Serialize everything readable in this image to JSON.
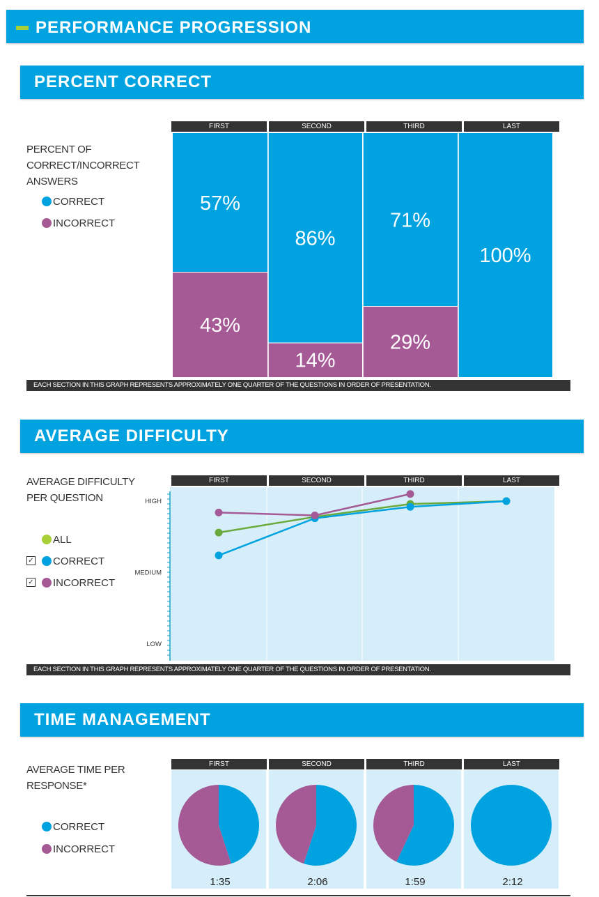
{
  "header": {
    "title": "PERFORMANCE PROGRESSION"
  },
  "colors": {
    "correct": "#00a3e0",
    "incorrect": "#a55a96",
    "all": "#a8cf38",
    "all_line": "#6aaa3c",
    "header_bar": "#333333",
    "panel": "#d5eef9"
  },
  "sections": {
    "percent": {
      "title": "PERCENT CORRECT",
      "legend_title_1": "PERCENT OF",
      "legend_title_2": "CORRECT/INCORRECT",
      "legend_title_3": "ANSWERS",
      "legend_correct": "CORRECT",
      "legend_incorrect": "INCORRECT",
      "footnote": "EACH SECTION IN THIS GRAPH REPRESENTS APPROXIMATELY ONE QUARTER OF THE QUESTIONS IN ORDER OF PRESENTATION."
    },
    "difficulty": {
      "title": "AVERAGE DIFFICULTY",
      "legend_title_1": "AVERAGE DIFFICULTY",
      "legend_title_2": "PER QUESTION",
      "legend_all": "ALL",
      "legend_correct": "CORRECT",
      "legend_incorrect": "INCORRECT",
      "check_correct": "✓",
      "check_incorrect": "✓",
      "footnote": "EACH SECTION IN THIS GRAPH REPRESENTS APPROXIMATELY ONE QUARTER OF THE QUESTIONS IN ORDER OF PRESENTATION."
    },
    "time": {
      "title": "TIME MANAGEMENT",
      "legend_title_1": "AVERAGE TIME PER",
      "legend_title_2": "RESPONSE*",
      "legend_correct": "CORRECT",
      "legend_incorrect": "INCORRECT"
    }
  },
  "chart_data": [
    {
      "type": "bar",
      "stacked": true,
      "title": "PERCENT CORRECT",
      "categories": [
        "FIRST",
        "SECOND",
        "THIRD",
        "LAST"
      ],
      "series": [
        {
          "name": "CORRECT",
          "values": [
            57,
            86,
            71,
            100
          ],
          "labels": [
            "57%",
            "86%",
            "71%",
            "100%"
          ]
        },
        {
          "name": "INCORRECT",
          "values": [
            43,
            14,
            29,
            0
          ],
          "labels": [
            "43%",
            "14%",
            "29%",
            ""
          ]
        }
      ],
      "ylim": [
        0,
        100
      ]
    },
    {
      "type": "line",
      "title": "AVERAGE DIFFICULTY",
      "categories": [
        "FIRST",
        "SECOND",
        "THIRD",
        "LAST"
      ],
      "y_tick_labels": [
        "HIGH",
        "MEDIUM",
        "LOW"
      ],
      "ylim": [
        0,
        1
      ],
      "series": [
        {
          "name": "ALL",
          "values": [
            0.78,
            0.89,
            0.98,
            1.0
          ]
        },
        {
          "name": "CORRECT",
          "values": [
            0.62,
            0.88,
            0.96,
            1.0
          ]
        },
        {
          "name": "INCORRECT",
          "values": [
            0.92,
            0.9,
            1.05,
            null
          ]
        }
      ]
    },
    {
      "type": "pie",
      "title": "TIME MANAGEMENT",
      "categories": [
        "FIRST",
        "SECOND",
        "THIRD",
        "LAST"
      ],
      "pies": [
        {
          "label": "1:35",
          "correct": 45,
          "incorrect": 55
        },
        {
          "label": "2:06",
          "correct": 55,
          "incorrect": 45
        },
        {
          "label": "1:59",
          "correct": 57,
          "incorrect": 43
        },
        {
          "label": "2:12",
          "correct": 100,
          "incorrect": 0
        }
      ]
    }
  ]
}
